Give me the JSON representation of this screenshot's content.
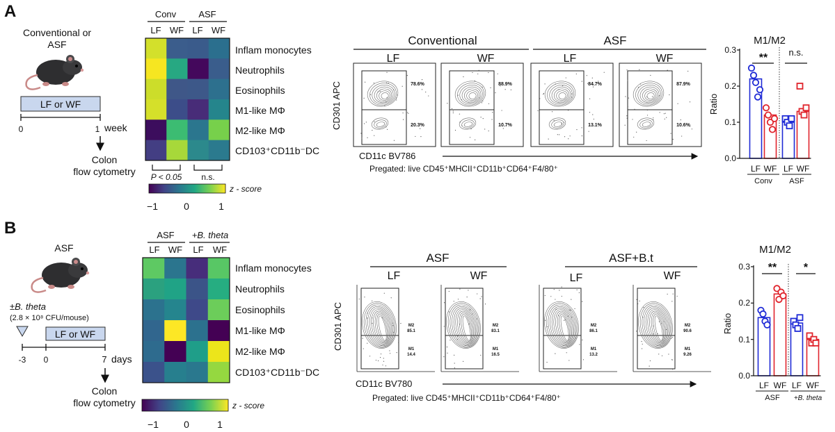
{
  "panel_a": {
    "letter": "A",
    "schematic": {
      "title_line1": "Conventional or",
      "title_line2": "ASF",
      "diet_box": "LF or WF",
      "tick_start": "0",
      "tick_end": "1",
      "time_unit": "week",
      "readout_line1": "Colon",
      "readout_line2": "flow cytometry"
    },
    "heatmap": {
      "group_labels": [
        "Conv",
        "ASF"
      ],
      "column_labels": [
        "LF",
        "WF",
        "LF",
        "WF"
      ],
      "row_labels": [
        "Inflam monocytes",
        "Neutrophils",
        "Eosinophils",
        "M1-like MΦ",
        "M2-like MΦ",
        "CD103⁺CD11b⁻DC"
      ],
      "cell_colors": [
        [
          "#d3e02b",
          "#3b5d8c",
          "#3a5b8b",
          "#2b6f8e"
        ],
        [
          "#f6e621",
          "#27a882",
          "#44085c",
          "#3a5d8c"
        ],
        [
          "#ccdd2a",
          "#3f5788",
          "#3d5889",
          "#2d708e"
        ],
        [
          "#d5e02a",
          "#3c4d89",
          "#482c78",
          "#25858c"
        ],
        [
          "#3c0d5d",
          "#3cbc72",
          "#2b768e",
          "#77d04b"
        ],
        [
          "#433e83",
          "#a7d83a",
          "#2c898c",
          "#2b7a8e"
        ]
      ],
      "stats_left": "P < 0.05",
      "stats_right": "n.s.",
      "colorbar_label": "z - score",
      "colorbar_ticks": [
        "−1",
        "0",
        "1"
      ]
    },
    "flow": {
      "group_labels": [
        "Conventional",
        "ASF"
      ],
      "diet_labels": [
        "LF",
        "WF",
        "LF",
        "WF"
      ],
      "upper_gate_values": [
        "78.6%",
        "88.9%",
        "84.7%",
        "87.9%"
      ],
      "lower_gate_values": [
        "20.3%",
        "10.7%",
        "13.1%",
        "10.6%"
      ],
      "y_axis_label": "CD301 APC",
      "x_axis_label": "CD11c BV786",
      "pregated": "Pregated: live CD45⁺MHCII⁺CD11b⁺CD64⁺F4/80⁺"
    },
    "bar_chart": {
      "title": "M1/M2",
      "ylabel": "Ratio",
      "ticks": [
        "0.0",
        "0.1",
        "0.2",
        "0.3"
      ],
      "categories": [
        "LF",
        "WF",
        "LF",
        "WF"
      ],
      "group_labels": [
        "Conv",
        "ASF"
      ],
      "significance": [
        "**",
        "n.s."
      ]
    }
  },
  "panel_b": {
    "letter": "B",
    "schematic": {
      "title": "ASF",
      "gavage_line1": "±B. theta",
      "gavage_line2": "(2.8 × 10⁸ CFU/mouse)",
      "diet_box": "LF or WF",
      "tick_labels": [
        "-3",
        "0",
        "7"
      ],
      "time_unit": "days",
      "readout_line1": "Colon",
      "readout_line2": "flow cytometry"
    },
    "heatmap": {
      "group_labels": [
        "ASF",
        "+B. theta"
      ],
      "column_labels": [
        "LF",
        "WF",
        "LF",
        "WF"
      ],
      "row_labels": [
        "Inflam monocytes",
        "Neutrophils",
        "Eosinophils",
        "M1-like MΦ",
        "M2-like MΦ",
        "CD103⁺CD11b⁻DC"
      ],
      "cell_colors": [
        [
          "#5ec963",
          "#2b758e",
          "#472d7b",
          "#58c765"
        ],
        [
          "#2ba17f",
          "#20a386",
          "#3b5488",
          "#26ad81"
        ],
        [
          "#2c728e",
          "#25858e",
          "#3e4989",
          "#6ccd5a"
        ],
        [
          "#31668e",
          "#fde725",
          "#2c718e",
          "#440154"
        ],
        [
          "#2e6b8e",
          "#440154",
          "#1f9e89",
          "#ece51b"
        ],
        [
          "#3b528b",
          "#277f8e",
          "#2a788e",
          "#95d840"
        ]
      ],
      "colorbar_label": "z - score",
      "colorbar_ticks": [
        "−1",
        "0",
        "1"
      ]
    },
    "flow": {
      "group_labels": [
        "ASF",
        "ASF+B.t"
      ],
      "diet_labels": [
        "LF",
        "WF",
        "LF",
        "WF"
      ],
      "m2_values": [
        "85.1",
        "83.1",
        "86.1",
        "90.6"
      ],
      "m1_values": [
        "14.4",
        "16.5",
        "13.2",
        "9.26"
      ],
      "gate_m2_label": "M2",
      "gate_m1_label": "M1",
      "y_axis_label": "CD301 APC",
      "x_axis_label": "CD11c BV780",
      "pregated": "Pregated: live CD45⁺MHCII⁺CD11b⁺CD64⁺F4/80⁺"
    },
    "bar_chart": {
      "title": "M1/M2",
      "ylabel": "Ratio",
      "ticks": [
        "0.0",
        "0.1",
        "0.2",
        "0.3"
      ],
      "categories": [
        "LF",
        "WF",
        "LF",
        "WF"
      ],
      "group_labels": [
        "ASF",
        "+B. theta"
      ],
      "significance": [
        "**",
        "*"
      ]
    }
  },
  "chart_data": [
    {
      "type": "bar",
      "title": "M1/M2",
      "ylabel": "Ratio",
      "ylim": [
        0,
        0.3
      ],
      "categories": [
        "LF",
        "WF",
        "LF",
        "WF"
      ],
      "values": [
        0.22,
        0.12,
        0.1,
        0.13
      ],
      "points": [
        [
          0.25,
          0.23,
          0.21,
          0.17,
          0.19
        ],
        [
          0.14,
          0.12,
          0.1,
          0.08,
          0.11
        ],
        [
          0.11,
          0.1,
          0.09,
          0.11
        ],
        [
          0.2,
          0.13,
          0.12,
          0.14
        ]
      ],
      "colors": [
        "#1f2bd6",
        "#e0242c",
        "#1f2bd6",
        "#e0242c"
      ],
      "markers": [
        "circle",
        "circle",
        "square",
        "square"
      ],
      "groups": [
        "Conv",
        "ASF"
      ],
      "significance": [
        "**",
        "n.s."
      ]
    },
    {
      "type": "bar",
      "title": "M1/M2",
      "ylabel": "Ratio",
      "ylim": [
        0,
        0.3
      ],
      "categories": [
        "LF",
        "WF",
        "LF",
        "WF"
      ],
      "values": [
        0.16,
        0.225,
        0.145,
        0.1
      ],
      "points": [
        [
          0.18,
          0.17,
          0.15,
          0.14
        ],
        [
          0.24,
          0.21,
          0.23,
          0.22
        ],
        [
          0.15,
          0.14,
          0.13,
          0.16
        ],
        [
          0.11,
          0.09,
          0.1,
          0.09
        ]
      ],
      "colors": [
        "#1f2bd6",
        "#e0242c",
        "#1f2bd6",
        "#e0242c"
      ],
      "markers": [
        "circle",
        "circle",
        "square",
        "square"
      ],
      "groups": [
        "ASF",
        "+B. theta"
      ],
      "significance": [
        "**",
        "*"
      ]
    }
  ]
}
